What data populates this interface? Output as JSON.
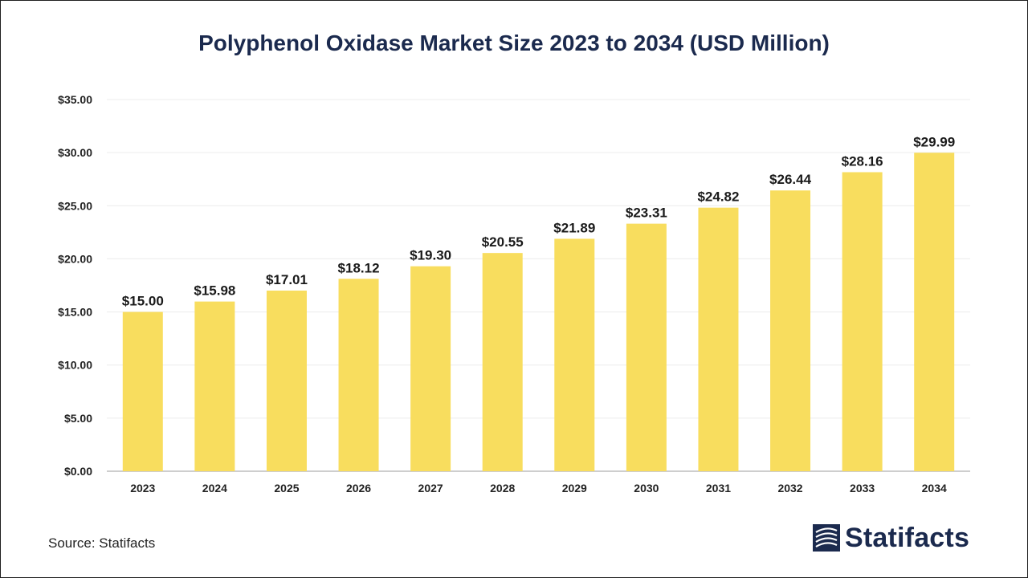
{
  "chart_data": {
    "type": "bar",
    "title": "Polyphenol Oxidase Market Size 2023 to 2034 (USD Million)",
    "categories": [
      "2023",
      "2024",
      "2025",
      "2026",
      "2027",
      "2028",
      "2029",
      "2030",
      "2031",
      "2032",
      "2033",
      "2034"
    ],
    "values": [
      15.0,
      15.98,
      17.01,
      18.12,
      19.3,
      20.55,
      21.89,
      23.31,
      24.82,
      26.44,
      28.16,
      29.99
    ],
    "data_labels": [
      "$15.00",
      "$15.98",
      "$17.01",
      "$18.12",
      "$19.30",
      "$20.55",
      "$21.89",
      "$23.31",
      "$24.82",
      "$26.44",
      "$28.16",
      "$29.99"
    ],
    "ylim": [
      0,
      35
    ],
    "yticks": [
      0,
      5,
      10,
      15,
      20,
      25,
      30,
      35
    ],
    "ytick_labels": [
      "$0.00",
      "$5.00",
      "$10.00",
      "$15.00",
      "$20.00",
      "$25.00",
      "$30.00",
      "$35.00"
    ],
    "xlabel": "",
    "ylabel": "",
    "grid": true,
    "bar_color": "#f8dd5e"
  },
  "footer": {
    "source": "Source: Statifacts",
    "logo_text": "Statifacts",
    "brand_color": "#1b2a4e"
  }
}
